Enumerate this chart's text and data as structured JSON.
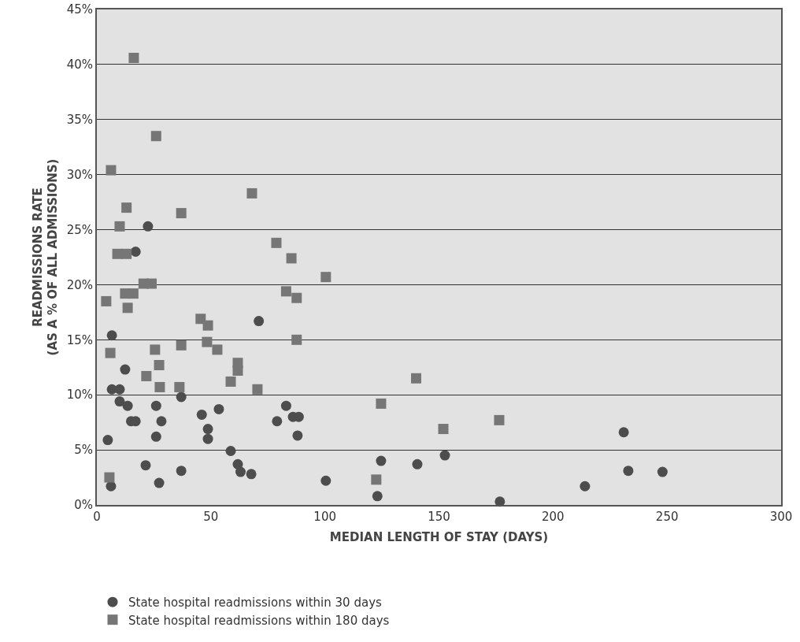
{
  "chart_data": {
    "type": "scatter",
    "xlabel": "MEDIAN LENGTH OF STAY (DAYS)",
    "ylabel": "READMISSIONS RATE\n(AS A % OF ALL ADMISSIONS)",
    "xlim": [
      0,
      300
    ],
    "xticks": [
      0,
      50,
      100,
      150,
      200,
      250,
      300
    ],
    "ylim": [
      0,
      45
    ],
    "yticks": [
      {
        "value": 0,
        "label": "0%"
      },
      {
        "value": 5,
        "label": "5%"
      },
      {
        "value": 10,
        "label": "10%"
      },
      {
        "value": 15,
        "label": "15%"
      },
      {
        "value": 20,
        "label": "20%"
      },
      {
        "value": 25,
        "label": "25%"
      },
      {
        "value": 30,
        "label": "30%"
      },
      {
        "value": 35,
        "label": "35%"
      },
      {
        "value": 40,
        "label": "40%"
      },
      {
        "value": 45,
        "label": "45%"
      }
    ],
    "grid": "y",
    "legend": "bottom",
    "series": [
      {
        "name": "State hospital readmissions within 30 days",
        "color": "#4d4d4d",
        "marker": "circle",
        "x": [
          22.4,
          17,
          71,
          6.6,
          12.4,
          6.6,
          10,
          10,
          13.5,
          26,
          37,
          15,
          17,
          28.3,
          46,
          53.5,
          83,
          79,
          86,
          88.5,
          88,
          48.7,
          48.7,
          26,
          4.8,
          58.7,
          61.8,
          63,
          67.7,
          21.4,
          37,
          27.3,
          6.2,
          100.4,
          231,
          124.6,
          140.5,
          152.6,
          233,
          248,
          214,
          123,
          176.7
        ],
        "values": [
          25.3,
          23,
          16.7,
          15.4,
          12.3,
          10.5,
          10.5,
          9.4,
          9.0,
          9.0,
          9.8,
          7.6,
          7.6,
          7.6,
          8.2,
          8.7,
          9.0,
          7.6,
          8.0,
          8.0,
          6.3,
          6.9,
          6.0,
          6.2,
          5.9,
          4.9,
          3.7,
          3.0,
          2.8,
          3.6,
          3.1,
          2.0,
          1.7,
          2.2,
          6.6,
          4.0,
          3.7,
          4.5,
          3.1,
          3.0,
          1.7,
          0.8,
          0.3
        ]
      },
      {
        "name": "State hospital readmissions within 180 days",
        "color": "#767676",
        "marker": "square",
        "x": [
          16.2,
          26,
          6.2,
          68,
          13,
          37,
          10,
          78.7,
          85.3,
          9,
          13,
          100.4,
          20.5,
          24,
          12.4,
          16,
          4.1,
          13.5,
          83,
          87.6,
          45.5,
          48.7,
          87.6,
          48.3,
          52.8,
          25.5,
          37,
          5.9,
          61.8,
          61.8,
          27.3,
          21.7,
          58.7,
          27.6,
          36.2,
          70.4,
          5.5,
          140,
          124.6,
          176.4,
          151.9,
          122.5
        ],
        "values": [
          40.6,
          33.5,
          30.4,
          28.3,
          27.0,
          26.5,
          25.3,
          23.8,
          22.4,
          22.8,
          22.8,
          20.7,
          20.1,
          20.1,
          19.2,
          19.2,
          18.5,
          17.9,
          19.4,
          18.8,
          16.9,
          16.3,
          15.0,
          14.8,
          14.1,
          14.1,
          14.5,
          13.8,
          12.9,
          12.2,
          12.7,
          11.7,
          11.2,
          10.7,
          10.7,
          10.5,
          2.5,
          11.5,
          9.2,
          7.7,
          6.9,
          2.3
        ]
      }
    ]
  }
}
